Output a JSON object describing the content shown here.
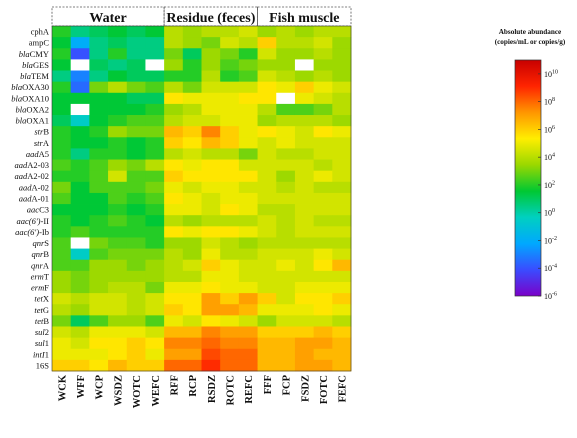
{
  "chart_data": {
    "type": "heatmap",
    "groups": [
      {
        "label": "Water",
        "columns": 6
      },
      {
        "label": "Residue (feces)",
        "columns": 5
      },
      {
        "label": "Fish muscle",
        "columns": 5
      }
    ],
    "columns": [
      "WCK",
      "WFF",
      "WCP",
      "WSDZ",
      "WOTC",
      "WEFC",
      "RFF",
      "RCP",
      "RSDZ",
      "ROTC",
      "REFC",
      "FFF",
      "FCP",
      "FSDZ",
      "FOTC",
      "FEFC"
    ],
    "rows": [
      "cphA",
      "ampC",
      "blaCMY",
      "blaGES",
      "blaTEM",
      "blaOXA30",
      "blaOXA10",
      "blaOXA2",
      "blaOXA1",
      "strB",
      "strA",
      "aadA5",
      "aadA2-03",
      "aadA2-02",
      "aadA-02",
      "aadA-01",
      "aacC3",
      "aac(6')-II",
      "aac(6')-Ib",
      "qnrS",
      "qnrB",
      "qnrA",
      "ermT",
      "ermF",
      "tetX",
      "tetG",
      "tetB",
      "sul2",
      "sul1",
      "intI1",
      "16S"
    ],
    "row_labels": [
      {
        "prefix": "",
        "suffix": "cphA"
      },
      {
        "prefix": "",
        "suffix": "ampC"
      },
      {
        "prefix": "bla",
        "suffix": "CMY"
      },
      {
        "prefix": "bla",
        "suffix": "GES"
      },
      {
        "prefix": "bla",
        "suffix": "TEM"
      },
      {
        "prefix": "bla",
        "suffix": "OXA30"
      },
      {
        "prefix": "bla",
        "suffix": "OXA10"
      },
      {
        "prefix": "bla",
        "suffix": "OXA2"
      },
      {
        "prefix": "bla",
        "suffix": "OXA1"
      },
      {
        "prefix": "str",
        "suffix": "B"
      },
      {
        "prefix": "str",
        "suffix": "A"
      },
      {
        "prefix": "aad",
        "suffix": "A5"
      },
      {
        "prefix": "aad",
        "suffix": "A2-03"
      },
      {
        "prefix": "aad",
        "suffix": "A2-02"
      },
      {
        "prefix": "aad",
        "suffix": "A-02"
      },
      {
        "prefix": "aad",
        "suffix": "A-01"
      },
      {
        "prefix": "aac",
        "suffix": "C3"
      },
      {
        "prefix": "aac(6')",
        "suffix": "-II"
      },
      {
        "prefix": "aac(6')",
        "suffix": "-Ib"
      },
      {
        "prefix": "qnr",
        "suffix": "S"
      },
      {
        "prefix": "qnr",
        "suffix": "B"
      },
      {
        "prefix": "qnr",
        "suffix": "A"
      },
      {
        "prefix": "erm",
        "suffix": "T"
      },
      {
        "prefix": "erm",
        "suffix": "F"
      },
      {
        "prefix": "tet",
        "suffix": "X"
      },
      {
        "prefix": "tet",
        "suffix": "G"
      },
      {
        "prefix": "tet",
        "suffix": "B"
      },
      {
        "prefix": "sul",
        "suffix": "2"
      },
      {
        "prefix": "sul",
        "suffix": "1"
      },
      {
        "prefix": "intI",
        "suffix": "1"
      },
      {
        "prefix": "",
        "suffix": "16S"
      }
    ],
    "values_log10": [
      [
        2.0,
        0.5,
        1.0,
        1.5,
        1.0,
        1.5,
        4.0,
        3.5,
        4.0,
        4.0,
        4.5,
        3.5,
        4.0,
        3.5,
        4.0,
        4.0
      ],
      [
        1.5,
        -2.0,
        0.5,
        1.0,
        0.5,
        0.5,
        4.0,
        3.5,
        3.0,
        4.5,
        4.0,
        6.0,
        4.0,
        4.0,
        4.5,
        3.5
      ],
      [
        2.0,
        -4.0,
        0.5,
        2.0,
        0.5,
        0.5,
        3.0,
        1.0,
        3.5,
        3.0,
        2.0,
        4.5,
        3.5,
        3.5,
        4.0,
        3.5
      ],
      [
        1.5,
        null,
        1.0,
        0.5,
        1.0,
        null,
        3.5,
        2.0,
        3.5,
        2.5,
        3.0,
        3.5,
        3.5,
        null,
        3.5,
        3.5
      ],
      [
        0.5,
        -3.0,
        0.5,
        1.5,
        1.0,
        1.0,
        2.0,
        2.0,
        4.0,
        2.0,
        2.5,
        4.5,
        4.0,
        3.5,
        4.0,
        3.5
      ],
      [
        2.0,
        -3.5,
        3.0,
        4.0,
        3.0,
        2.5,
        4.0,
        3.0,
        4.5,
        4.5,
        4.5,
        5.5,
        5.0,
        6.0,
        5.0,
        4.5
      ],
      [
        1.5,
        1.5,
        1.5,
        1.5,
        1.0,
        1.0,
        5.5,
        5.0,
        5.0,
        5.0,
        5.5,
        5.5,
        null,
        5.0,
        4.5,
        4.0
      ],
      [
        1.5,
        null,
        1.5,
        1.5,
        1.5,
        2.0,
        3.5,
        4.0,
        5.0,
        5.0,
        5.0,
        4.0,
        2.5,
        2.5,
        3.0,
        4.0
      ],
      [
        1.0,
        -0.5,
        1.5,
        2.0,
        2.5,
        2.5,
        4.0,
        4.5,
        4.5,
        5.0,
        5.0,
        3.5,
        4.0,
        4.0,
        4.0,
        3.5
      ],
      [
        2.0,
        1.5,
        2.0,
        3.5,
        3.0,
        3.0,
        6.5,
        6.0,
        7.5,
        6.0,
        5.0,
        5.5,
        5.0,
        4.5,
        5.5,
        5.0
      ],
      [
        2.0,
        1.5,
        1.5,
        2.0,
        1.5,
        2.0,
        6.0,
        5.5,
        6.5,
        6.0,
        5.0,
        4.5,
        5.0,
        4.5,
        4.5,
        4.5
      ],
      [
        2.0,
        0.5,
        2.0,
        2.0,
        1.5,
        2.0,
        4.0,
        4.5,
        4.0,
        4.0,
        3.0,
        4.5,
        4.0,
        4.0,
        4.5,
        4.5
      ],
      [
        2.5,
        2.0,
        2.5,
        3.5,
        3.0,
        4.0,
        5.5,
        5.0,
        5.5,
        5.5,
        4.5,
        4.5,
        4.5,
        4.5,
        4.0,
        4.5
      ],
      [
        2.0,
        2.0,
        2.5,
        4.5,
        2.5,
        2.5,
        6.0,
        5.5,
        5.5,
        5.5,
        5.5,
        4.5,
        3.5,
        4.5,
        5.0,
        4.5
      ],
      [
        3.0,
        1.5,
        2.5,
        2.5,
        2.5,
        3.0,
        5.0,
        4.5,
        5.0,
        5.0,
        4.5,
        4.5,
        4.0,
        4.5,
        4.0,
        4.0
      ],
      [
        2.5,
        1.5,
        1.5,
        2.5,
        2.0,
        2.5,
        5.5,
        5.0,
        4.5,
        5.0,
        5.0,
        4.5,
        4.5,
        4.5,
        4.5,
        4.5
      ],
      [
        1.5,
        1.5,
        1.5,
        2.0,
        1.5,
        2.0,
        5.0,
        5.0,
        4.5,
        5.5,
        5.0,
        4.0,
        4.0,
        4.5,
        4.5,
        4.5
      ],
      [
        2.0,
        1.5,
        2.0,
        2.5,
        2.0,
        1.5,
        4.0,
        3.5,
        4.0,
        4.0,
        4.0,
        4.5,
        4.0,
        4.5,
        4.0,
        4.0
      ],
      [
        2.0,
        2.5,
        2.0,
        2.0,
        2.0,
        2.0,
        5.5,
        5.0,
        5.5,
        5.5,
        5.0,
        4.5,
        4.0,
        4.5,
        4.5,
        4.5
      ],
      [
        2.5,
        null,
        3.0,
        2.5,
        2.5,
        2.0,
        3.5,
        3.5,
        4.5,
        4.0,
        3.5,
        4.0,
        4.0,
        4.0,
        4.0,
        4.0
      ],
      [
        2.5,
        -0.5,
        2.5,
        3.0,
        3.0,
        3.0,
        4.0,
        3.5,
        5.0,
        4.0,
        4.0,
        4.5,
        4.5,
        4.5,
        5.0,
        4.5
      ],
      [
        2.5,
        2.5,
        3.5,
        3.5,
        3.0,
        3.5,
        4.0,
        4.5,
        6.0,
        5.0,
        4.5,
        4.5,
        5.0,
        4.5,
        5.5,
        6.5
      ],
      [
        3.5,
        3.0,
        3.5,
        3.5,
        3.5,
        3.5,
        4.0,
        4.0,
        5.0,
        5.0,
        4.5,
        4.5,
        4.5,
        4.5,
        4.5,
        4.5
      ],
      [
        3.5,
        3.0,
        3.5,
        4.0,
        4.0,
        3.0,
        5.0,
        5.0,
        5.5,
        5.0,
        5.0,
        4.5,
        4.5,
        5.0,
        5.0,
        5.0
      ],
      [
        4.5,
        4.0,
        4.5,
        4.5,
        4.0,
        4.5,
        5.5,
        5.5,
        7.0,
        6.0,
        7.0,
        6.0,
        4.5,
        5.5,
        5.5,
        6.0
      ],
      [
        4.0,
        3.5,
        4.5,
        4.5,
        4.0,
        4.5,
        6.0,
        5.5,
        7.0,
        7.0,
        6.5,
        5.0,
        5.0,
        5.0,
        5.5,
        5.0
      ],
      [
        3.0,
        1.0,
        2.5,
        3.5,
        3.5,
        2.5,
        5.0,
        4.5,
        5.5,
        5.0,
        4.5,
        3.5,
        4.5,
        4.5,
        4.5,
        4.0
      ],
      [
        4.5,
        4.0,
        5.0,
        5.0,
        5.0,
        4.5,
        6.5,
        6.5,
        7.5,
        7.0,
        7.0,
        6.0,
        6.0,
        6.0,
        6.5,
        6.0
      ],
      [
        5.0,
        4.5,
        5.5,
        5.5,
        6.0,
        5.5,
        7.5,
        7.5,
        8.0,
        7.5,
        7.5,
        6.5,
        6.5,
        7.0,
        7.0,
        6.5
      ],
      [
        5.0,
        5.0,
        5.0,
        5.5,
        6.0,
        5.0,
        7.0,
        7.0,
        8.5,
        8.0,
        8.0,
        6.5,
        6.5,
        7.0,
        6.5,
        6.5
      ],
      [
        6.0,
        6.0,
        5.5,
        6.5,
        6.0,
        6.0,
        8.0,
        8.0,
        9.0,
        8.0,
        8.0,
        6.5,
        6.5,
        7.0,
        7.0,
        6.5
      ]
    ],
    "colorbar": {
      "title_lines": [
        "Absolute abundance",
        "(copies/mL or copies/g)"
      ],
      "range_log10": [
        -6,
        11
      ],
      "ticks": [
        {
          "base": "10",
          "exp": "10"
        },
        {
          "base": "10",
          "exp": "8"
        },
        {
          "base": "10",
          "exp": "6"
        },
        {
          "base": "10",
          "exp": "4"
        },
        {
          "base": "10",
          "exp": "2"
        },
        {
          "base": "10",
          "exp": "0"
        },
        {
          "base": "10",
          "exp": "-2"
        },
        {
          "base": "10",
          "exp": "-4"
        },
        {
          "base": "10",
          "exp": "-6"
        }
      ],
      "tick_values_log10": [
        10,
        8,
        6,
        4,
        2,
        0,
        -2,
        -4,
        -6
      ],
      "colors": [
        "#7a00c8",
        "#3a4cff",
        "#00a8ff",
        "#00d0c0",
        "#00c832",
        "#9ad800",
        "#ffee00",
        "#ff9600",
        "#ff2400",
        "#c80000"
      ]
    },
    "missing_color": "#ffffff"
  }
}
